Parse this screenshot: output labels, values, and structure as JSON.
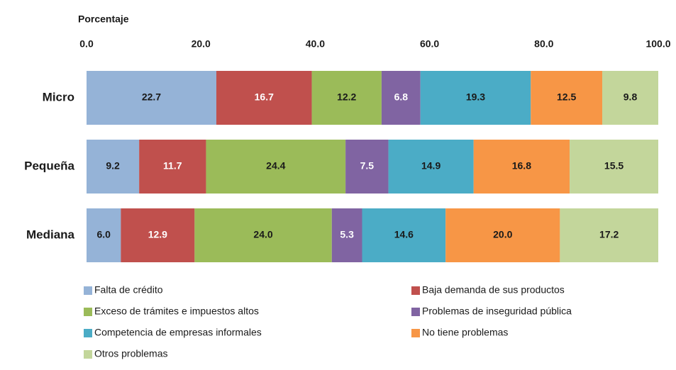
{
  "chart_data": {
    "type": "stacked-bar-horizontal",
    "x_label": "Porcentaje",
    "categories": [
      "Micro",
      "Pequeña",
      "Mediana"
    ],
    "xlim": [
      0,
      100
    ],
    "xticks": [
      {
        "value": 0,
        "label": "0.0"
      },
      {
        "value": 20,
        "label": "20.0"
      },
      {
        "value": 40,
        "label": "40.0"
      },
      {
        "value": 60,
        "label": "60.0"
      },
      {
        "value": 80,
        "label": "80.0"
      },
      {
        "value": 100,
        "label": "100.0"
      }
    ],
    "series": [
      {
        "name": "Falta de crédito",
        "color": "#95b3d7",
        "values": [
          22.7,
          9.2,
          6.0
        ],
        "value_labels": [
          "22.7",
          "9.2",
          "6.0"
        ]
      },
      {
        "name": "Baja demanda de sus productos",
        "color": "#c0504d",
        "values": [
          16.7,
          11.7,
          12.9
        ],
        "value_labels": [
          "16.7",
          "11.7",
          "12.9"
        ]
      },
      {
        "name": "Exceso de trámites e impuestos altos",
        "color": "#9bbb59",
        "values": [
          12.2,
          24.4,
          24.0
        ],
        "value_labels": [
          "12.2",
          "24.4",
          "24.0"
        ]
      },
      {
        "name": "Problemas de inseguridad pública",
        "color": "#8064a2",
        "values": [
          6.8,
          7.5,
          5.3
        ],
        "value_labels": [
          "6.8",
          "7.5",
          "5.3"
        ]
      },
      {
        "name": "Competencia de empresas informales",
        "color": "#4bacc6",
        "values": [
          19.3,
          14.9,
          14.6
        ],
        "value_labels": [
          "19.3",
          "14.9",
          "14.6"
        ]
      },
      {
        "name": "No tiene problemas",
        "color": "#f79646",
        "values": [
          12.5,
          16.8,
          20.0
        ],
        "value_labels": [
          "12.5",
          "16.8",
          "20.0"
        ]
      },
      {
        "name": "Otros problemas",
        "color": "#c3d69b",
        "values": [
          9.8,
          15.5,
          17.2
        ],
        "value_labels": [
          "9.8",
          "15.5",
          "17.2"
        ]
      }
    ],
    "legend": "bottom"
  }
}
